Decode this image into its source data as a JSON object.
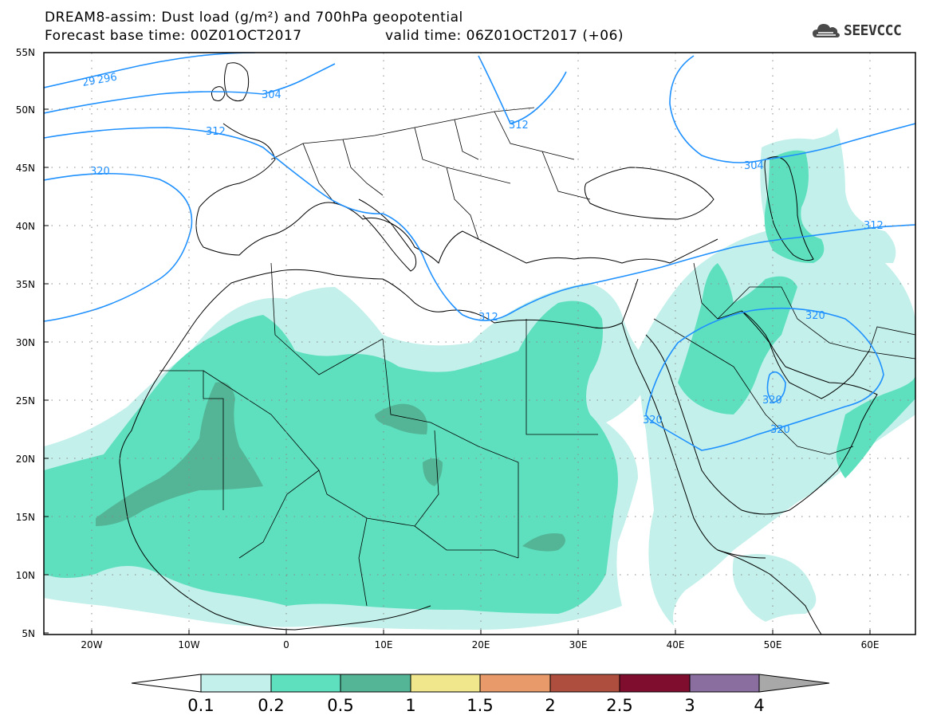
{
  "title_line1": "DREAM8-assim: Dust load (g/m²) and 700hPa geopotential",
  "title_line2_base": "Forecast base time: 00Z01OCT2017",
  "title_line2_valid": "valid time: 06Z01OCT2017 (+06)",
  "logo_text": "SEEVCCC",
  "lat_labels": [
    "55N",
    "50N",
    "45N",
    "40N",
    "35N",
    "30N",
    "25N",
    "20N",
    "15N",
    "10N",
    "5N"
  ],
  "lon_labels": [
    "20W",
    "10W",
    "0",
    "10E",
    "20E",
    "30E",
    "40E",
    "50E",
    "60E"
  ],
  "contour_labels": {
    "c29296": "29 296",
    "c304": "304",
    "c312": "312",
    "c320": "320"
  },
  "colorbar": {
    "tick_labels": [
      "0.1",
      "0.2",
      "0.5",
      "1",
      "1.5",
      "2",
      "2.5",
      "3",
      "4"
    ],
    "colors": [
      "#c3f0ea",
      "#5ee0bf",
      "#53b595",
      "#f0e68c",
      "#e89a6a",
      "#ad4e3e",
      "#7f0d2e",
      "#8b6ea0",
      "#a8a8a8"
    ]
  },
  "map_colors": {
    "dust_low": "#c3f0ea",
    "dust_mid": "#5ee0bf",
    "dust_high": "#53b595",
    "contour": "#1e90ff"
  }
}
